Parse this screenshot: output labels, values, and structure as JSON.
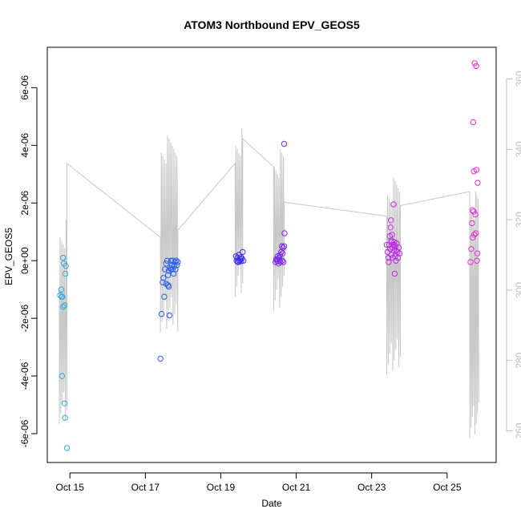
{
  "chart_data": {
    "type": "scatter",
    "title": "ATOM3 Northbound EPV_GEOS5",
    "xlabel": "Date",
    "ylabel": "EPV_GEOS5",
    "x_ticks": [
      "Oct 15",
      "Oct 17",
      "Oct 19",
      "Oct 21",
      "Oct 23",
      "Oct 25"
    ],
    "x_tick_days": [
      15,
      17,
      19,
      21,
      23,
      25
    ],
    "xlim": [
      14.4,
      26.3
    ],
    "ylim": [
      -7e-06,
      7.4e-06
    ],
    "y_ticks": [
      -6e-06,
      -4e-06,
      -2e-06,
      0,
      2e-06,
      4e-06,
      6e-06
    ],
    "y_tick_labels": [
      "-6e-06",
      "-4e-06",
      "-2e-06",
      "0e+00",
      "2e-06",
      "4e-06",
      "6e-06"
    ],
    "y2_ticks": [
      260,
      280,
      300,
      320,
      340,
      360
    ],
    "y2lim": [
      251,
      369
    ],
    "grid": false,
    "colors": {
      "altitude_line": "#c8c8c8",
      "segment_1": "#33a8e0",
      "segment_2": "#2a5ee6",
      "segment_3": "#3a2ee8",
      "segment_4": "#7a2ae6",
      "segment_5": "#c02ce6",
      "segment_6": "#e62ed8"
    },
    "series": [
      {
        "color_key": "segment_1",
        "points": [
          [
            14.74,
            -1.2e-06
          ],
          [
            14.77,
            -1e-06
          ],
          [
            14.8,
            -1.25e-06
          ],
          [
            14.79,
            -4e-06
          ],
          [
            14.82,
            -1.6e-06
          ],
          [
            14.82,
            1e-07
          ],
          [
            14.84,
            -1e-07
          ],
          [
            14.86,
            -1.55e-06
          ],
          [
            14.88,
            -4.5e-07
          ],
          [
            14.89,
            -1.8e-07
          ],
          [
            14.86,
            -4.95e-06
          ],
          [
            14.87,
            -5.45e-06
          ],
          [
            14.92,
            -6.5e-06
          ],
          [
            14.78,
            -1.25e-06
          ]
        ]
      },
      {
        "color_key": "segment_2",
        "points": [
          [
            17.4,
            -3.4e-06
          ],
          [
            17.43,
            -1.85e-06
          ],
          [
            17.46,
            -7.5e-07
          ],
          [
            17.48,
            -6e-07
          ],
          [
            17.5,
            -1.25e-06
          ],
          [
            17.52,
            -3e-07
          ],
          [
            17.55,
            -1e-07
          ],
          [
            17.55,
            -8e-07
          ],
          [
            17.58,
            0.0
          ],
          [
            17.6,
            -5e-07
          ],
          [
            17.6,
            -8.5e-07
          ],
          [
            17.62,
            -3.5e-07
          ],
          [
            17.62,
            -9e-07
          ],
          [
            17.64,
            -1.9e-06
          ],
          [
            17.66,
            -2.5e-07
          ],
          [
            17.68,
            0.0
          ],
          [
            17.68,
            -3e-07
          ],
          [
            17.7,
            -1.5e-07
          ],
          [
            17.72,
            -3e-07
          ],
          [
            17.73,
            0.0
          ],
          [
            17.75,
            -4.5e-07
          ],
          [
            17.76,
            -2e-07
          ],
          [
            17.78,
            -5e-08
          ],
          [
            17.8,
            -3e-07
          ],
          [
            17.82,
            0.0
          ],
          [
            17.84,
            -1.5e-07
          ],
          [
            17.86,
            -5e-08
          ]
        ]
      },
      {
        "color_key": "segment_3",
        "points": [
          [
            19.4,
            1.5e-07
          ],
          [
            19.42,
            0.0
          ],
          [
            19.44,
            1e-07
          ],
          [
            19.46,
            -5e-08
          ],
          [
            19.48,
            2e-07
          ],
          [
            19.5,
            0.0
          ],
          [
            19.52,
            5e-08
          ],
          [
            19.54,
            -2e-08
          ],
          [
            19.56,
            8e-08
          ],
          [
            19.58,
            3e-07
          ],
          [
            19.6,
            0.0
          ],
          [
            19.45,
            -4e-08
          ],
          [
            19.53,
            1.2e-07
          ]
        ]
      },
      {
        "color_key": "segment_4",
        "points": [
          [
            20.45,
            -5e-08
          ],
          [
            20.47,
            5e-08
          ],
          [
            20.49,
            0.0
          ],
          [
            20.51,
            1.5e-07
          ],
          [
            20.53,
            -1e-07
          ],
          [
            20.55,
            1e-07
          ],
          [
            20.57,
            2e-07
          ],
          [
            20.58,
            -5e-08
          ],
          [
            20.6,
            3e-07
          ],
          [
            20.62,
            5e-07
          ],
          [
            20.63,
            0.0
          ],
          [
            20.65,
            4.5e-07
          ],
          [
            20.66,
            -5e-08
          ],
          [
            20.68,
            5e-07
          ],
          [
            20.69,
            9.5e-07
          ],
          [
            20.68,
            4.05e-06
          ],
          [
            20.64,
            2.5e-07
          ],
          [
            20.56,
            0.0
          ],
          [
            20.5,
            5e-08
          ]
        ]
      },
      {
        "color_key": "segment_5",
        "points": [
          [
            23.4,
            5.5e-07
          ],
          [
            23.42,
            3e-07
          ],
          [
            23.44,
            1e-07
          ],
          [
            23.45,
            -5e-08
          ],
          [
            23.46,
            5.5e-07
          ],
          [
            23.48,
            8.5e-07
          ],
          [
            23.49,
            4e-07
          ],
          [
            23.5,
            1.15e-06
          ],
          [
            23.51,
            1.4e-06
          ],
          [
            23.52,
            2e-07
          ],
          [
            23.53,
            6.5e-07
          ],
          [
            23.54,
            9e-07
          ],
          [
            23.55,
            4.5e-07
          ],
          [
            23.56,
            1e-07
          ],
          [
            23.57,
            5.5e-07
          ],
          [
            23.58,
            1.95e-06
          ],
          [
            23.59,
            3.5e-07
          ],
          [
            23.6,
            6.5e-07
          ],
          [
            23.61,
            -4.5e-07
          ],
          [
            23.62,
            1.5e-07
          ],
          [
            23.63,
            5e-07
          ],
          [
            23.64,
            0.0
          ],
          [
            23.65,
            3.5e-07
          ],
          [
            23.66,
            6e-07
          ],
          [
            23.68,
            3e-07
          ],
          [
            23.7,
            1e-07
          ],
          [
            23.72,
            4.5e-07
          ],
          [
            23.74,
            2.5e-07
          ],
          [
            23.6,
            5.5e-07
          ],
          [
            23.52,
            7e-07
          ]
        ]
      },
      {
        "color_key": "segment_6",
        "points": [
          [
            25.62,
            -5e-08
          ],
          [
            25.64,
            4e-07
          ],
          [
            25.66,
            1.3e-06
          ],
          [
            25.67,
            1.75e-06
          ],
          [
            25.68,
            8e-07
          ],
          [
            25.69,
            4.8e-06
          ],
          [
            25.7,
            1.7e-06
          ],
          [
            25.71,
            3.1e-06
          ],
          [
            25.72,
            9e-07
          ],
          [
            25.73,
            6.85e-06
          ],
          [
            25.75,
            1.6e-06
          ],
          [
            25.76,
            9.5e-07
          ],
          [
            25.77,
            6.75e-06
          ],
          [
            25.78,
            3.15e-06
          ],
          [
            25.79,
            0.0
          ],
          [
            25.8,
            2.5e-07
          ],
          [
            25.81,
            2.7e-06
          ]
        ]
      }
    ]
  }
}
